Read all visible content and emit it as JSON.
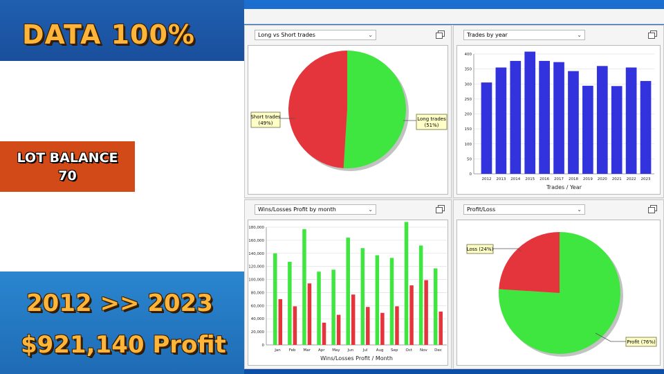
{
  "promo": {
    "title": "DATA 100%",
    "lot_label": "LOT BALANCE",
    "lot_value": "70",
    "years": "2012 >> 2023",
    "profit": "$921,140 Profit"
  },
  "colors": {
    "short": "#e5353c",
    "long": "#3fe63f",
    "bar_blue": "#3333dd",
    "win": "#3fe63f",
    "loss": "#e5353c"
  },
  "panels": [
    {
      "dropdown": "Long vs Short trades",
      "chart_data": {
        "type": "pie",
        "slices": [
          {
            "label": "Short trades",
            "pct": "(49%)",
            "value": 49
          },
          {
            "label": "Long trades",
            "pct": "(51%)",
            "value": 51
          }
        ]
      }
    },
    {
      "dropdown": "Trades by year",
      "chart_data": {
        "type": "bar",
        "categories": [
          "2012",
          "2013",
          "2014",
          "2015",
          "2016",
          "2017",
          "2018",
          "2019",
          "2020",
          "2021",
          "2022",
          "2023"
        ],
        "values": [
          305,
          355,
          377,
          408,
          377,
          373,
          343,
          294,
          360,
          293,
          355,
          310
        ],
        "ylim": [
          0,
          400
        ],
        "yticks": [
          "0",
          "50",
          "100",
          "150",
          "200",
          "250",
          "300",
          "350",
          "400"
        ],
        "xlabel": "Trades / Year",
        "grid": true
      }
    },
    {
      "dropdown": "Wins/Losses Profit by month",
      "chart_data": {
        "type": "bar",
        "categories": [
          "Jan",
          "Feb",
          "Mar",
          "Apr",
          "May",
          "Jun",
          "Jul",
          "Aug",
          "Sep",
          "Oct",
          "Nov",
          "Dec"
        ],
        "series": [
          {
            "values": [
              140000,
              127000,
              177000,
              112000,
              115000,
              164000,
              148000,
              137000,
              133000,
              188000,
              152000,
              117000
            ]
          },
          {
            "values": [
              70000,
              59000,
              94000,
              34000,
              46000,
              77000,
              58000,
              49000,
              59000,
              91000,
              99000,
              51000
            ]
          }
        ],
        "ylim": [
          0,
          180000
        ],
        "yticks": [
          "0",
          "20,000",
          "40,000",
          "60,000",
          "80,000",
          "100,000",
          "120,000",
          "140,000",
          "160,000",
          "180,000"
        ],
        "xlabel": "Wins/Losses Profit / Month",
        "grid": true
      }
    },
    {
      "dropdown": "Profit/Loss",
      "chart_data": {
        "type": "pie",
        "slices": [
          {
            "label": "Loss",
            "pct": "(24%)",
            "value": 24
          },
          {
            "label": "Profit",
            "pct": "(76%)",
            "value": 76
          }
        ]
      }
    }
  ]
}
